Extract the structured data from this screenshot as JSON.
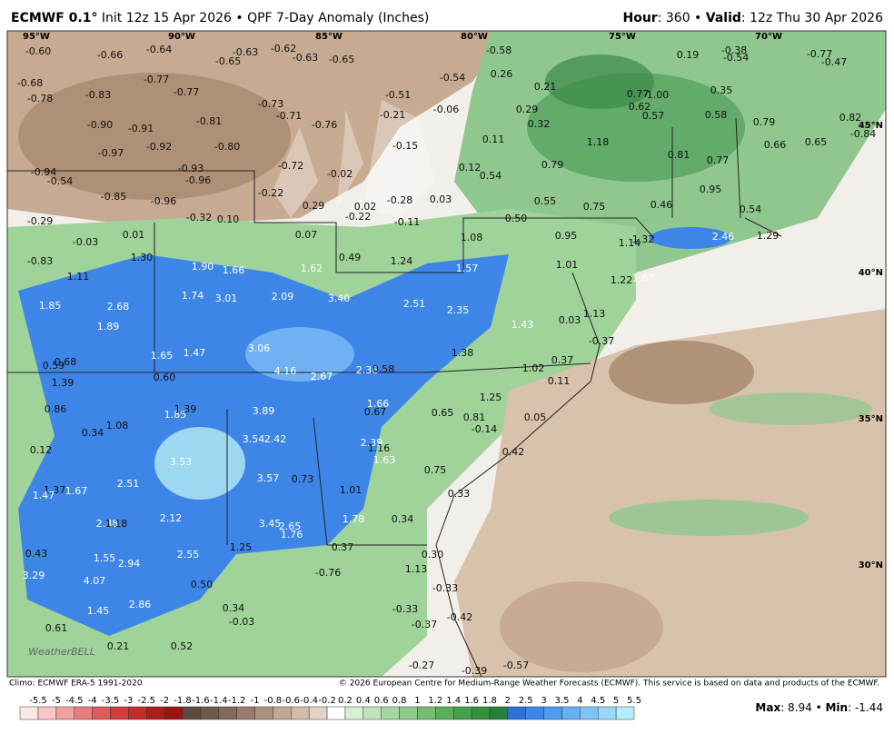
{
  "header": {
    "title_bold": "ECMWF 0.1°",
    "title_rest": "Init 12z 15 Apr 2026 • QPF 7-Day Anomaly (Inches)",
    "hour_label": "Hour",
    "hour_value": ": 360 • ",
    "valid_label": "Valid",
    "valid_value": ": 12z Thu 30 Apr 2026"
  },
  "map": {
    "longitudes": [
      "95°W",
      "90°W",
      "85°W",
      "80°W",
      "75°W",
      "70°W"
    ],
    "latitudes": [
      "45°N",
      "40°N",
      "35°N",
      "30°N"
    ],
    "logo": "WeatherBELL",
    "labels": [
      "-0.60",
      "-0.66",
      "-0.64",
      "-0.63",
      "-0.62",
      "-0.63",
      "-0.65",
      "-0.58",
      "-0.38",
      "-0.54",
      "-0.77",
      "-0.47",
      "0.19",
      "-0.65",
      "-0.68",
      "-0.78",
      "-0.77",
      "-0.77",
      "-0.54",
      "0.26",
      "0.21",
      "-0.83",
      "0.77",
      "1.00",
      "0.35",
      "-0.51",
      "-0.81",
      "-0.73",
      "-0.71",
      "-0.76",
      "-0.21",
      "-0.06",
      "0.29",
      "0.62",
      "0.57",
      "0.58",
      "0.79",
      "0.82",
      "-0.90",
      "-0.91",
      "0.32",
      "-0.84",
      "-0.92",
      "-0.80",
      "-0.97",
      "-0.15",
      "0.11",
      "1.18",
      "0.66",
      "0.65",
      "-0.72",
      "-0.93",
      "-0.94",
      "0.12",
      "0.79",
      "0.81",
      "0.77",
      "-0.02",
      "-0.54",
      "-0.96",
      "0.54",
      "-0.85",
      "-0.22",
      "-0.96",
      "0.29",
      "0.02",
      "-0.28",
      "0.03",
      "0.55",
      "0.75",
      "0.46",
      "0.95",
      "-0.32",
      "0.10",
      "-0.22",
      "-0.11",
      "0.50",
      "0.54",
      "-0.29",
      "0.01",
      "0.07",
      "1.08",
      "0.95",
      "1.14",
      "1.32",
      "2.46",
      "1.29",
      "-0.03",
      "-0.83",
      "1.30",
      "0.49",
      "1.24",
      "1.01",
      "1.57",
      "1.90",
      "1.66",
      "1.62",
      "1.11",
      "1.22",
      "1.67",
      "1.74",
      "3.01",
      "2.09",
      "3.40",
      "2.51",
      "2.35",
      "1.85",
      "2.68",
      "1.89",
      "1.43",
      "1.13",
      "0.03",
      "3.06",
      "1.65",
      "1.47",
      "1.38",
      "-0.37",
      "0.59",
      "0.68",
      "4.16",
      "2.67",
      "2.36",
      "0.58",
      "1.02",
      "0.37",
      "1.39",
      "0.60",
      "0.11",
      "1.25",
      "1.66",
      "0.86",
      "1.85",
      "1.39",
      "3.89",
      "0.67",
      "0.65",
      "0.81",
      "0.05",
      "-0.14",
      "1.08",
      "0.34",
      "3.54",
      "2.42",
      "2.39",
      "1.16",
      "0.12",
      "0.42",
      "1.63",
      "3.53",
      "0.75",
      "3.57",
      "0.73",
      "2.51",
      "1.37",
      "1.67",
      "1.47",
      "1.01",
      "0.33",
      "2.12",
      "2.38",
      "1.18",
      "3.45",
      "2.65",
      "1.76",
      "1.78",
      "0.34",
      "0.43",
      "2.55",
      "1.25",
      "0.37",
      "0.30",
      "1.55",
      "2.94",
      "3.29",
      "4.07",
      "0.50",
      "-0.76",
      "1.13",
      "-0.33",
      "2.86",
      "1.45",
      "0.34",
      "-0.03",
      "-0.33",
      "-0.37",
      "-0.42",
      "0.61",
      "0.21",
      "0.52",
      "-0.27",
      "-0.39",
      "-0.57"
    ]
  },
  "footer": {
    "climo": "Climo: ECMWF ERA-5 1991-2020",
    "copyright": "© 2026 European Centre for Medium-Range Weather Forecasts (ECMWF). This service is based on data and products of the ECMWF.",
    "colorbar_labels": [
      "-5.5",
      "-5",
      "-4.5",
      "-4",
      "-3.5",
      "-3",
      "-2.5",
      "-2",
      "-1.8",
      "-1.6",
      "-1.4",
      "-1.2",
      "-1",
      "-0.8",
      "-0.6",
      "-0.4",
      "-0.2",
      "0.2",
      "0.4",
      "0.6",
      "0.8",
      "1",
      "1.2",
      "1.4",
      "1.6",
      "1.8",
      "2",
      "2.5",
      "3",
      "3.5",
      "4",
      "4.5",
      "5",
      "5.5"
    ],
    "max_label": "Max",
    "max_value": ": 8.94 • ",
    "min_label": "Min",
    "min_value": ": -1.44"
  }
}
